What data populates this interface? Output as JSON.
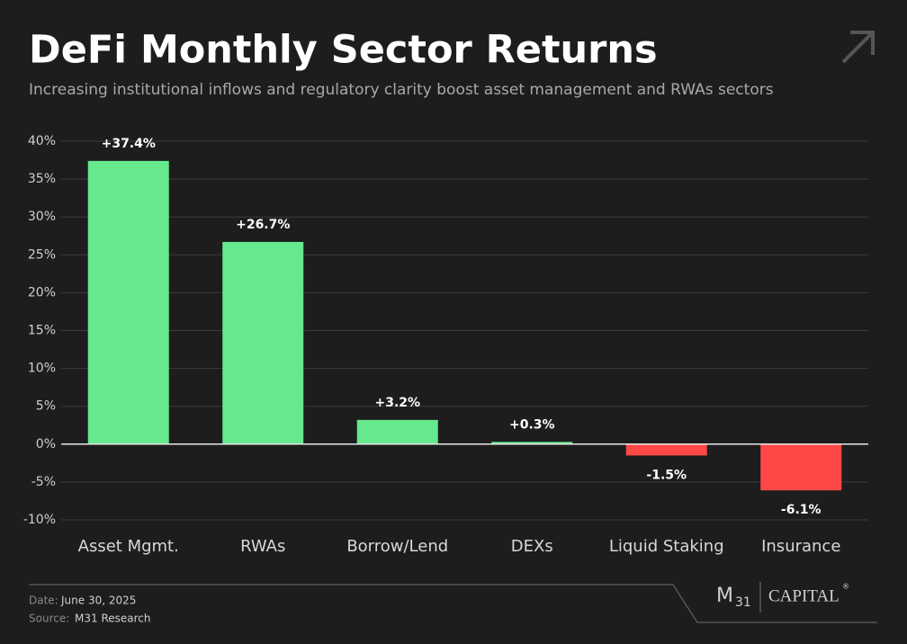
{
  "chart_data": {
    "type": "bar",
    "title": "DeFi Monthly Sector Returns",
    "subtitle": "Increasing institutional inflows and regulatory clarity boost asset management and RWAs sectors",
    "categories": [
      "Asset Mgmt.",
      "RWAs",
      "Borrow/Lend",
      "DEXs",
      "Liquid Staking",
      "Insurance"
    ],
    "values": [
      37.4,
      26.7,
      3.2,
      0.3,
      -1.5,
      -6.1
    ],
    "value_labels": [
      "+37.4%",
      "+26.7%",
      "+3.2%",
      "+0.3%",
      "-1.5%",
      "-6.1%"
    ],
    "positive_color": "#66e88f",
    "negative_color": "#ff4747",
    "ylim": [
      -10,
      40
    ],
    "yticks": [
      {
        "value": -10,
        "label": "-10%"
      },
      {
        "value": -5,
        "label": "-5%"
      },
      {
        "value": 0,
        "label": "0%"
      },
      {
        "value": 5,
        "label": "5%"
      },
      {
        "value": 10,
        "label": "10%"
      },
      {
        "value": 15,
        "label": "15%"
      },
      {
        "value": 20,
        "label": "20%"
      },
      {
        "value": 25,
        "label": "25%"
      },
      {
        "value": 30,
        "label": "30%"
      },
      {
        "value": 35,
        "label": "35%"
      },
      {
        "value": 40,
        "label": "40%"
      }
    ],
    "grid": true
  },
  "footer": {
    "date_label": "Date:",
    "date": "June 30, 2025",
    "source_label": "Source:",
    "source": "M31 Research",
    "logo_m": "M",
    "logo_31": "31",
    "logo_capital": "CAPITAL",
    "logo_reg": "®"
  }
}
